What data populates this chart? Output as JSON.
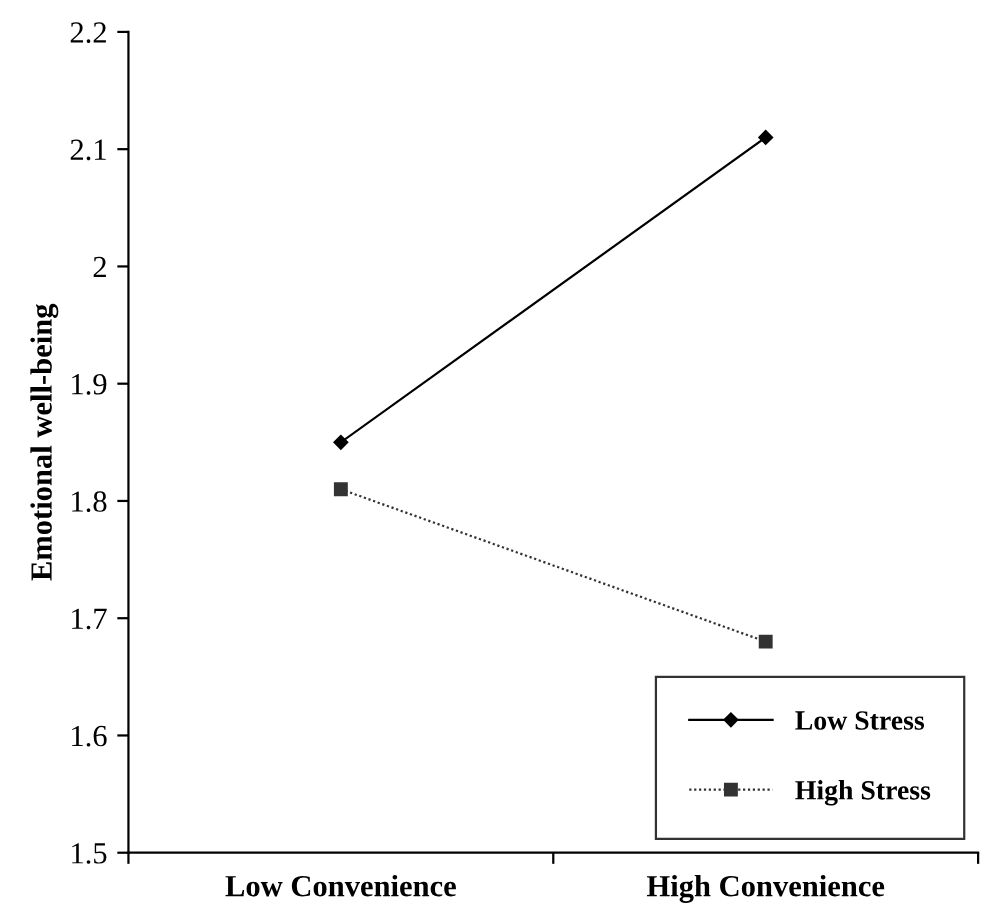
{
  "chart_data": {
    "type": "line",
    "ylabel": "Emotional well-being",
    "categories": [
      "Low Convenience",
      "High Convenience"
    ],
    "series": [
      {
        "name": "Low Stress",
        "color": "#000000",
        "values": [
          1.85,
          2.11
        ],
        "marker": "diamond",
        "line_style": "solid"
      },
      {
        "name": "High Stress",
        "color": "#333333",
        "values": [
          1.81,
          1.68
        ],
        "marker": "square",
        "line_style": "dotted"
      }
    ],
    "ylim": [
      1.5,
      2.2
    ],
    "yticks": [
      1.5,
      1.6,
      1.7,
      1.8,
      1.9,
      2,
      2.1,
      2.2
    ],
    "grid": false,
    "legend": "bottom right"
  }
}
